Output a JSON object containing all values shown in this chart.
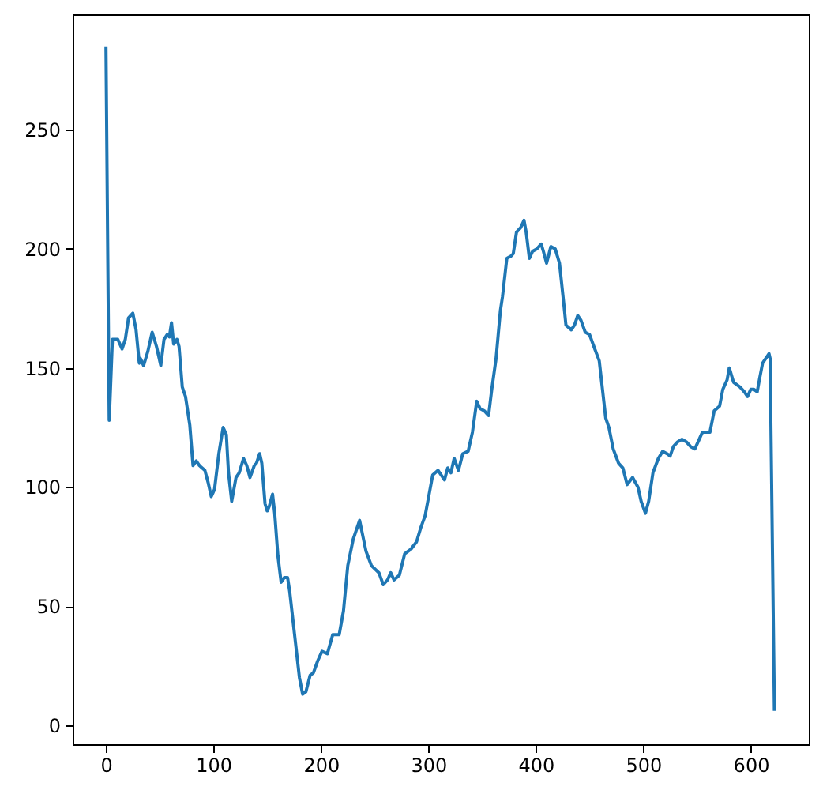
{
  "chart_data": {
    "type": "line",
    "x": [
      0,
      3,
      6,
      11,
      15,
      18,
      21,
      25,
      28,
      31,
      32,
      35,
      39,
      43,
      47,
      51,
      54,
      57,
      59,
      61,
      63,
      66,
      68,
      71,
      74,
      78,
      81,
      84,
      87,
      92,
      95,
      98,
      101,
      105,
      109,
      112,
      114,
      117,
      121,
      124,
      128,
      131,
      134,
      138,
      140,
      143,
      145,
      148,
      150,
      152,
      155,
      157,
      160,
      163,
      166,
      169,
      171,
      176,
      180,
      183,
      186,
      190,
      193,
      197,
      201,
      206,
      211,
      217,
      221,
      225,
      230,
      236,
      242,
      247,
      254,
      258,
      262,
      265,
      268,
      273,
      278,
      284,
      289,
      293,
      297,
      304,
      309,
      315,
      318,
      321,
      324,
      328,
      332,
      337,
      341,
      345,
      348,
      352,
      356,
      359,
      363,
      367,
      369,
      373,
      377,
      379,
      382,
      386,
      389,
      391,
      394,
      397,
      401,
      405,
      407,
      410,
      414,
      418,
      422,
      426,
      428,
      433,
      436,
      439,
      442,
      446,
      450,
      454,
      459,
      462,
      465,
      468,
      472,
      477,
      481,
      485,
      490,
      495,
      498,
      502,
      505,
      509,
      514,
      518,
      522,
      525,
      528,
      532,
      536,
      540,
      544,
      548,
      551,
      555,
      558,
      562,
      566,
      571,
      574,
      578,
      580,
      584,
      587,
      590,
      594,
      597,
      600,
      603,
      606,
      608,
      611,
      614,
      617,
      618,
      622
    ],
    "series": [
      {
        "color": "#1f77b4",
        "values": [
          285,
          128,
          162,
          162,
          158,
          162,
          171,
          173,
          166,
          152,
          154,
          151,
          157,
          165,
          159,
          151,
          162,
          164,
          163,
          169,
          160,
          162,
          159,
          142,
          138,
          126,
          109,
          111,
          109,
          107,
          102,
          96,
          99,
          114,
          125,
          122,
          106,
          94,
          104,
          106,
          112,
          109,
          104,
          109,
          110,
          114,
          110,
          93,
          90,
          92,
          97,
          89,
          71,
          60,
          62,
          62,
          56,
          36,
          20,
          13,
          14,
          21,
          22,
          27,
          31,
          30,
          38,
          38,
          48,
          67,
          78,
          86,
          73,
          67,
          64,
          59,
          61,
          64,
          61,
          63,
          72,
          74,
          77,
          83,
          88,
          105,
          107,
          103,
          108,
          106,
          112,
          107,
          114,
          115,
          123,
          136,
          133,
          132,
          130,
          141,
          154,
          174,
          180,
          196,
          197,
          198,
          207,
          209,
          212,
          207,
          196,
          199,
          200,
          202,
          199,
          194,
          201,
          200,
          194,
          177,
          168,
          166,
          168,
          172,
          170,
          165,
          164,
          159,
          153,
          141,
          129,
          125,
          116,
          110,
          108,
          101,
          104,
          100,
          94,
          89,
          94,
          106,
          112,
          115,
          114,
          113,
          117,
          119,
          120,
          119,
          117,
          116,
          119,
          123,
          123,
          123,
          132,
          134,
          141,
          145,
          150,
          144,
          143,
          142,
          140,
          138,
          141,
          141,
          140,
          145,
          152,
          154,
          156,
          154,
          6
        ]
      }
    ],
    "xlim": [
      -31,
      654
    ],
    "ylim": [
      -8,
      298.5
    ],
    "xticks": [
      0,
      100,
      200,
      300,
      400,
      500,
      600
    ],
    "yticks": [
      0,
      50,
      100,
      150,
      200,
      250
    ],
    "grid": false,
    "line_style": "solid"
  }
}
